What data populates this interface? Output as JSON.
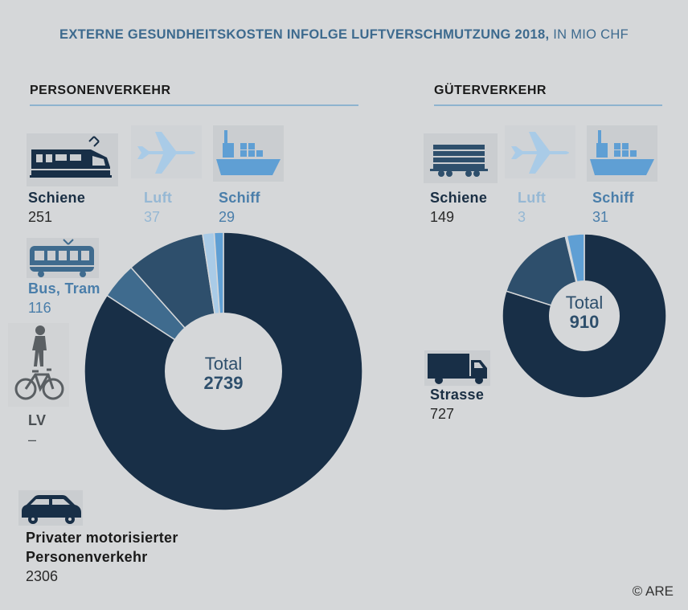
{
  "title": {
    "bold": "EXTERNE GESUNDHEITSKOSTEN INFOLGE LUFTVERSCHMUTZUNG 2018,",
    "light": " IN MIO CHF"
  },
  "copyright": "© ARE",
  "colors": {
    "private_car": "#182f47",
    "schiene": "#2e4f6c",
    "bus": "#3f6b8e",
    "schiff_pers": "#5f9fd4",
    "luft_pers": "#a9cbe7",
    "strasse": "#182f47",
    "schiene_gueter": "#2e4f6c",
    "luft_gueter": "#a9cbe7",
    "schiff_gueter": "#5f9fd4",
    "hole": "#d5d7d9"
  },
  "personen": {
    "heading": "PERSONENVERKEHR",
    "schiene": {
      "label": "Schiene",
      "value": "251",
      "icon": "train-icon"
    },
    "luft": {
      "label": "Luft",
      "value": "37",
      "icon": "airplane-icon"
    },
    "schiff": {
      "label": "Schiff",
      "value": "29",
      "icon": "ship-icon"
    },
    "bus": {
      "label": "Bus, Tram",
      "value": "116",
      "icon": "tram-icon"
    },
    "lv": {
      "label": "LV",
      "value": "–",
      "icon": "pedestrian-bicycle-icon"
    },
    "auto": {
      "label_line1": "Privater motorisierter",
      "label_line2": "Personenverkehr",
      "value": "2306",
      "icon": "car-icon"
    },
    "total_label": "Total",
    "total_value": "2739"
  },
  "gueter": {
    "heading": "GÜTERVERKEHR",
    "schiene": {
      "label": "Schiene",
      "value": "149",
      "icon": "freight-wagon-icon"
    },
    "luft": {
      "label": "Luft",
      "value": "3",
      "icon": "airplane-icon"
    },
    "schiff": {
      "label": "Schiff",
      "value": "31",
      "icon": "ship-icon"
    },
    "strasse": {
      "label": "Strasse",
      "value": "727",
      "icon": "truck-icon"
    },
    "total_label": "Total",
    "total_value": "910"
  },
  "chart_data": [
    {
      "type": "pie",
      "title": "PERSONENVERKEHR",
      "categories": [
        "Privater motorisierter Personenverkehr",
        "Bus, Tram",
        "Schiene",
        "Luft",
        "Schiff",
        "LV"
      ],
      "values": [
        2306,
        116,
        251,
        37,
        29,
        0
      ],
      "total": 2739
    },
    {
      "type": "pie",
      "title": "GÜTERVERKEHR",
      "categories": [
        "Strasse",
        "Schiene",
        "Luft",
        "Schiff"
      ],
      "values": [
        727,
        149,
        3,
        31
      ],
      "total": 910
    }
  ]
}
